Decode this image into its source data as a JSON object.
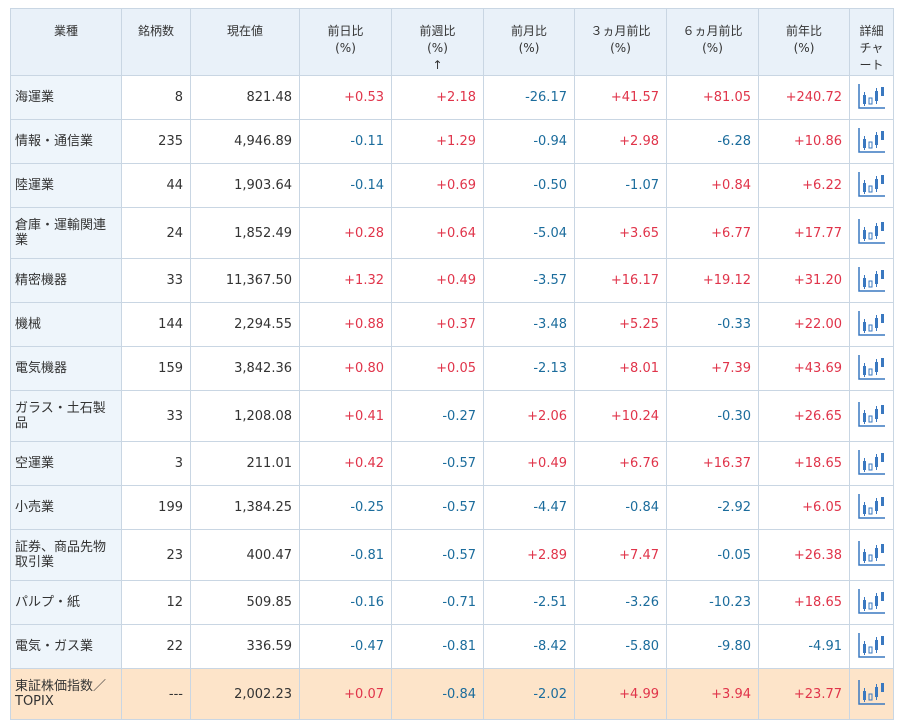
{
  "table": {
    "headers": [
      {
        "label": "業種"
      },
      {
        "label": "銘柄数"
      },
      {
        "label": "現在値"
      },
      {
        "label": "前日比",
        "unit": "(%)"
      },
      {
        "label": "前週比",
        "unit": "(%)"
      },
      {
        "label": "前月比",
        "unit": "(%)"
      },
      {
        "label": "３ヵ月前比",
        "unit": "(%)"
      },
      {
        "label": "６ヵ月前比",
        "unit": "(%)"
      },
      {
        "label": "前年比",
        "unit": "(%)"
      },
      {
        "label": "詳細チャート"
      }
    ],
    "rows": [
      [
        "海運業",
        "8",
        "821.48",
        "+0.53",
        "+2.18",
        "-26.17",
        "+41.57",
        "+81.05",
        "+240.72"
      ],
      [
        "情報・通信業",
        "235",
        "4,946.89",
        "-0.11",
        "+1.29",
        "-0.94",
        "+2.98",
        "-6.28",
        "+10.86"
      ],
      [
        "陸運業",
        "44",
        "1,903.64",
        "-0.14",
        "+0.69",
        "-0.50",
        "-1.07",
        "+0.84",
        "+6.22"
      ],
      [
        "倉庫・運輸関連業",
        "24",
        "1,852.49",
        "+0.28",
        "+0.64",
        "-5.04",
        "+3.65",
        "+6.77",
        "+17.77"
      ],
      [
        "精密機器",
        "33",
        "11,367.50",
        "+1.32",
        "+0.49",
        "-3.57",
        "+16.17",
        "+19.12",
        "+31.20"
      ],
      [
        "機械",
        "144",
        "2,294.55",
        "+0.88",
        "+0.37",
        "-3.48",
        "+5.25",
        "-0.33",
        "+22.00"
      ],
      [
        "電気機器",
        "159",
        "3,842.36",
        "+0.80",
        "+0.05",
        "-2.13",
        "+8.01",
        "+7.39",
        "+43.69"
      ],
      [
        "ガラス・土石製品",
        "33",
        "1,208.08",
        "+0.41",
        "-0.27",
        "+2.06",
        "+10.24",
        "-0.30",
        "+26.65"
      ],
      [
        "空運業",
        "3",
        "211.01",
        "+0.42",
        "-0.57",
        "+0.49",
        "+6.76",
        "+16.37",
        "+18.65"
      ],
      [
        "小売業",
        "199",
        "1,384.25",
        "-0.25",
        "-0.57",
        "-4.47",
        "-0.84",
        "-2.92",
        "+6.05"
      ],
      [
        "証券、商品先物取引業",
        "23",
        "400.47",
        "-0.81",
        "-0.57",
        "+2.89",
        "+7.47",
        "-0.05",
        "+26.38"
      ],
      [
        "パルプ・紙",
        "12",
        "509.85",
        "-0.16",
        "-0.71",
        "-2.51",
        "-3.26",
        "-10.23",
        "+18.65"
      ],
      [
        "電気・ガス業",
        "22",
        "336.59",
        "-0.47",
        "-0.81",
        "-8.42",
        "-5.80",
        "-9.80",
        "-4.91"
      ],
      [
        "東証株価指数／TOPIX",
        "---",
        "2,002.23",
        "+0.07",
        "-0.84",
        "-2.02",
        "+4.99",
        "+3.94",
        "+23.77"
      ]
    ]
  }
}
